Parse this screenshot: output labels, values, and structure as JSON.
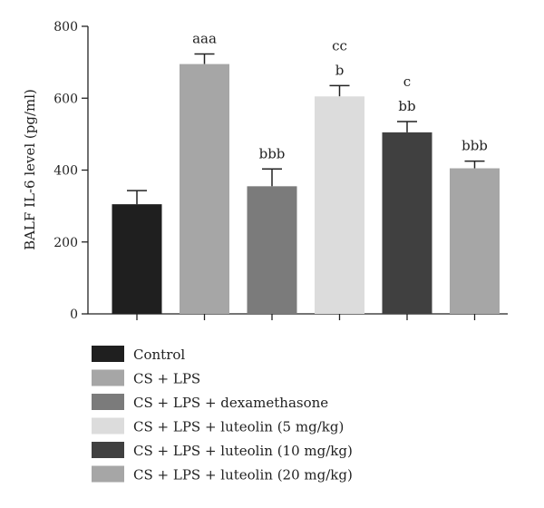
{
  "chart_data": {
    "type": "bar",
    "title": "",
    "ylabel": "BALF IL-6 level (pg/ml)",
    "xlabel": "",
    "ylim": [
      0,
      800
    ],
    "yticks": [
      "0",
      "200",
      "400",
      "600",
      "800"
    ],
    "grid": false,
    "legend_position": "bottom",
    "categories": [
      "Control",
      "CS + LPS",
      "CS + LPS + dexamethasone",
      "CS + LPS + luteolin (5 mg/kg)",
      "CS + LPS + luteolin (10 mg/kg)",
      "CS + LPS + luteolin (20 mg/kg)"
    ],
    "values": [
      305,
      695,
      355,
      605,
      505,
      405
    ],
    "errors": [
      38,
      28,
      48,
      30,
      30,
      20
    ],
    "colors": [
      "#1f1f1f",
      "#a6a6a6",
      "#7b7b7b",
      "#dcdcdc",
      "#404040",
      "#a6a6a6"
    ],
    "significance": [
      [],
      [
        "aaa"
      ],
      [
        "bbb"
      ],
      [
        "cc",
        "b"
      ],
      [
        "c",
        "bb"
      ],
      [
        "bbb"
      ]
    ]
  }
}
